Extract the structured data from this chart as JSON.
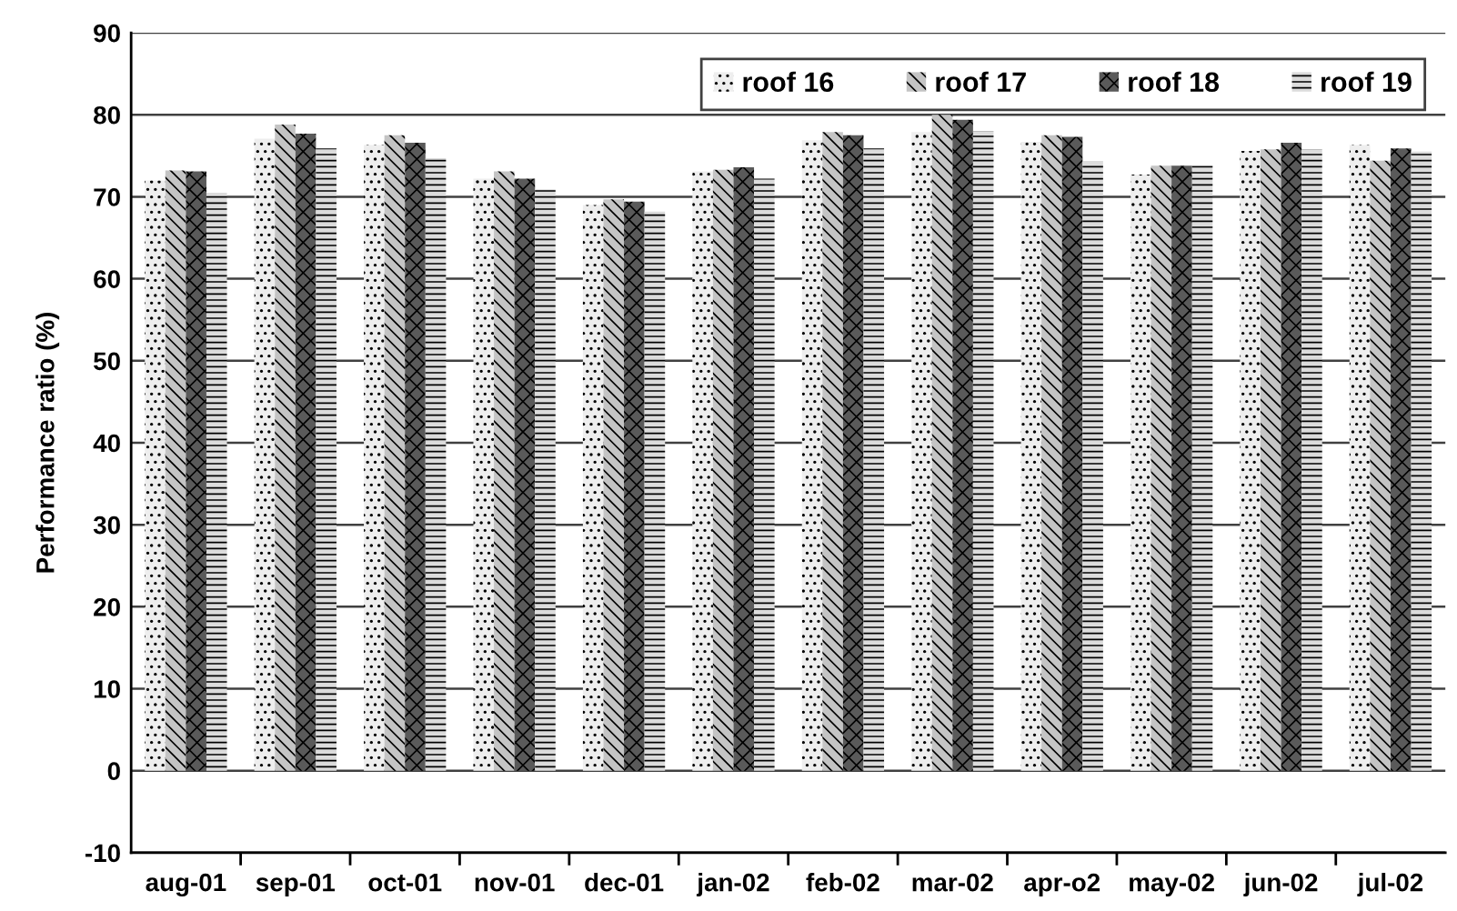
{
  "chart_data": {
    "type": "bar",
    "ylabel": "Performance ratio (%)",
    "categories": [
      "aug-01",
      "sep-01",
      "oct-01",
      "nov-01",
      "dec-01",
      "jan-02",
      "feb-02",
      "mar-02",
      "apr-o2",
      "may-02",
      "jun-02",
      "jul-02"
    ],
    "series": [
      {
        "name": "roof 16",
        "color": "#eeeeee",
        "values": [
          72.0,
          77.1,
          76.3,
          72.2,
          69.0,
          73.1,
          76.9,
          77.9,
          76.7,
          72.7,
          75.6,
          76.3
        ]
      },
      {
        "name": "roof 17",
        "color": "#c4c4c4",
        "values": [
          73.2,
          78.8,
          77.5,
          73.1,
          69.7,
          73.3,
          77.9,
          80.0,
          77.5,
          73.8,
          75.8,
          74.4
        ]
      },
      {
        "name": "roof 18",
        "color": "#5a5a5a",
        "values": [
          73.1,
          77.7,
          76.6,
          72.2,
          69.4,
          73.6,
          77.5,
          79.4,
          77.3,
          73.8,
          76.6,
          75.9
        ]
      },
      {
        "name": "roof 19",
        "color": "#dcdcdc",
        "values": [
          70.5,
          75.9,
          74.7,
          70.9,
          68.2,
          72.2,
          75.9,
          78.0,
          74.3,
          73.8,
          75.8,
          75.5
        ]
      }
    ],
    "ylim": [
      -10,
      90
    ],
    "yticks": [
      -10,
      0,
      10,
      20,
      30,
      40,
      50,
      60,
      70,
      80,
      90
    ],
    "grid": "y",
    "legend": "top right"
  }
}
